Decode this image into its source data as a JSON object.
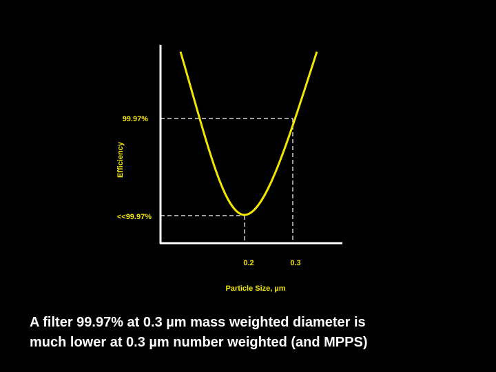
{
  "y_axis": {
    "label": "Efficiency",
    "ticks": [
      "99.97%",
      "<<99.97%"
    ]
  },
  "x_axis": {
    "label": "Particle Size, µm",
    "ticks": [
      "0.2",
      "0.3"
    ]
  },
  "caption": [
    "A filter 99.97% at 0.3 µm mass weighted diameter is",
    "much lower at 0.3 µm number weighted (and MPPS)"
  ]
}
